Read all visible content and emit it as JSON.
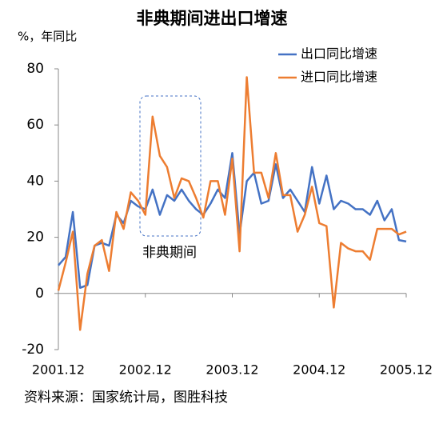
{
  "chart_data": {
    "type": "line",
    "title": "非典期间进出口增速",
    "y_axis_label": "%，年同比",
    "source": "资料来源：国家统计局，图胜科技",
    "annotation": "非典期间",
    "categories": [
      "2001.12",
      null,
      null,
      null,
      null,
      null,
      null,
      null,
      null,
      null,
      null,
      null,
      "2002.12",
      null,
      null,
      null,
      null,
      null,
      null,
      null,
      null,
      null,
      null,
      null,
      "2003.12",
      null,
      null,
      null,
      null,
      null,
      null,
      null,
      null,
      null,
      null,
      null,
      "2004.12",
      null,
      null,
      null,
      null,
      null,
      null,
      null,
      null,
      null,
      null,
      null,
      "2005.12"
    ],
    "series": [
      {
        "name": "出口同比增速",
        "color": "#4472c4",
        "values": [
          10,
          13,
          29,
          2,
          3,
          17,
          18,
          17,
          28,
          25,
          33,
          31,
          30,
          37,
          28,
          35,
          33,
          37,
          33,
          30,
          28,
          32,
          37,
          34,
          50,
          21,
          40,
          43,
          32,
          33,
          46,
          34,
          37,
          33,
          29,
          45,
          32,
          42,
          30,
          33,
          32,
          30,
          30,
          28,
          33,
          26,
          30,
          19,
          18.5
        ]
      },
      {
        "name": "进口同比增速",
        "color": "#ed7d31",
        "values": [
          1,
          11,
          22,
          -13,
          7,
          17,
          19,
          8,
          29,
          23,
          36,
          33,
          28,
          63,
          49,
          45,
          34,
          41,
          40,
          34,
          27,
          40,
          40,
          28,
          48,
          15,
          77,
          43,
          43,
          34,
          50,
          35,
          35,
          22,
          28,
          38,
          25,
          24,
          -5,
          18,
          16,
          15,
          15,
          12,
          23,
          23,
          23,
          21,
          22
        ]
      }
    ],
    "ylim": [
      -20,
      80
    ],
    "yticks": [
      -20,
      0,
      20,
      40,
      60,
      80
    ],
    "grid": false,
    "legend": "top-right"
  }
}
